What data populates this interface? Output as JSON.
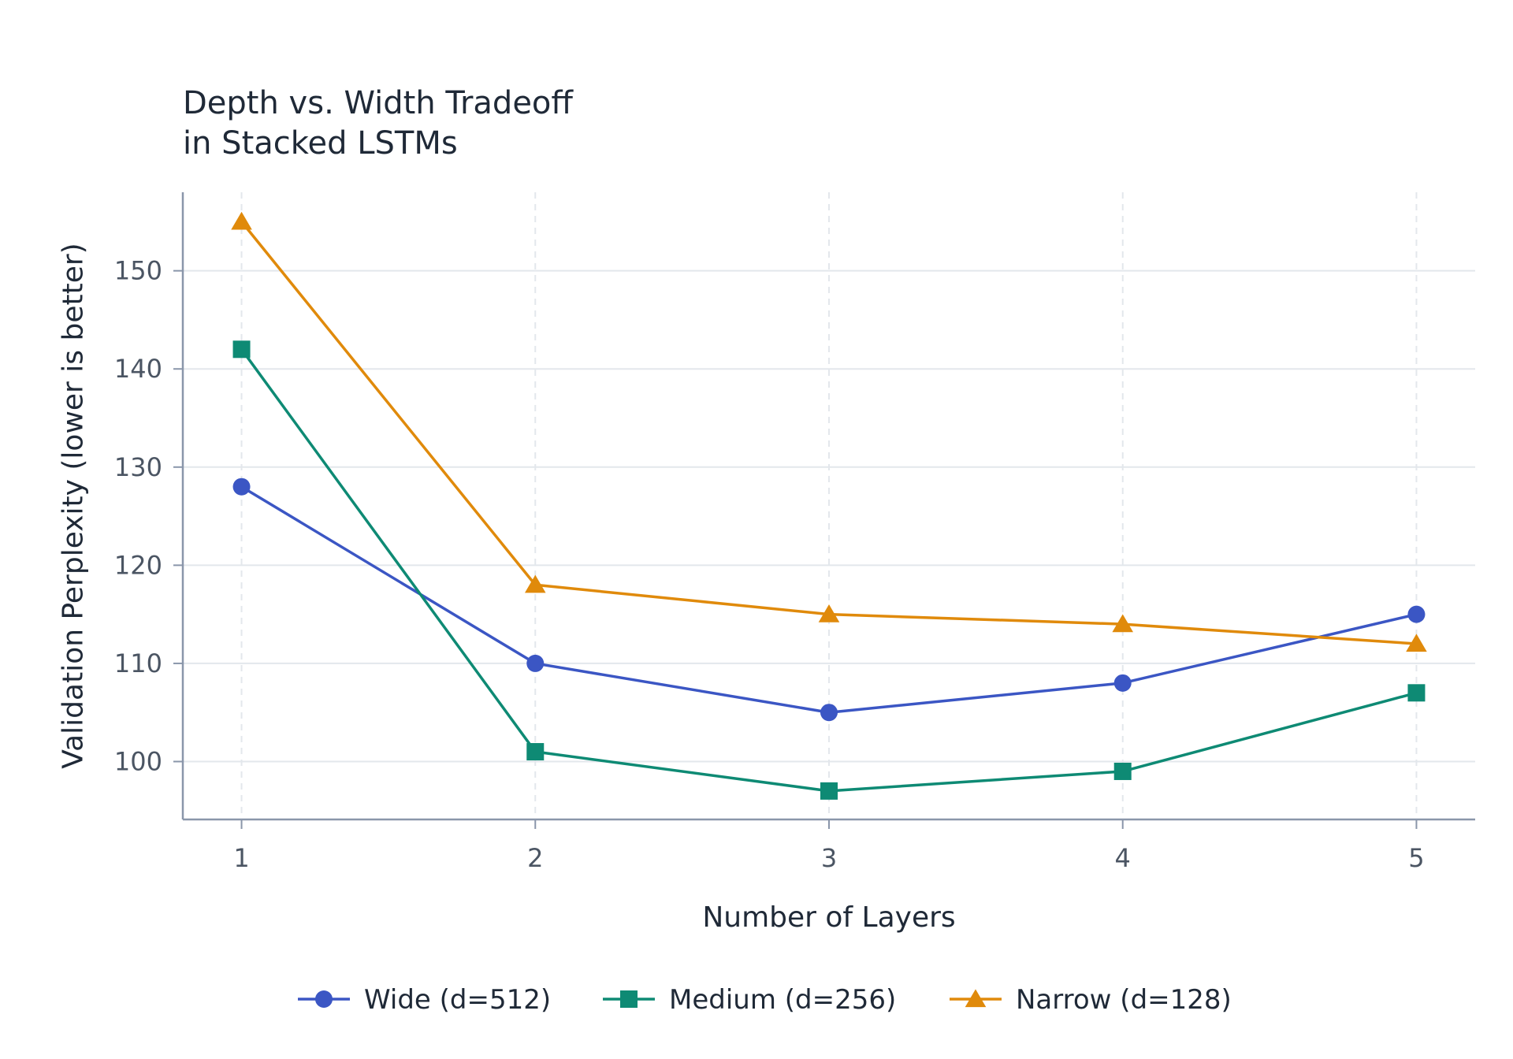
{
  "chart_data": {
    "type": "line",
    "title_lines": [
      "Depth vs. Width Tradeoff",
      "in Stacked LSTMs"
    ],
    "xlabel": "Number of Layers",
    "ylabel": "Validation Perplexity (lower is better)",
    "x": [
      1,
      2,
      3,
      4,
      5
    ],
    "x_tick_labels": [
      "1",
      "2",
      "3",
      "4",
      "5"
    ],
    "y_ticks": [
      100,
      110,
      120,
      130,
      140,
      150
    ],
    "y_tick_labels": [
      "100",
      "110",
      "120",
      "130",
      "140",
      "150"
    ],
    "xlim": [
      0.8,
      5.2
    ],
    "ylim": [
      94.1,
      158
    ],
    "grid": true,
    "legend_position": "bottom-center",
    "series": [
      {
        "name": "Wide (d=512)",
        "color": "#3b56c4",
        "marker": "circle",
        "values": [
          128,
          110,
          105,
          108,
          115
        ]
      },
      {
        "name": "Medium (d=256)",
        "color": "#0e8a74",
        "marker": "square",
        "values": [
          142,
          101,
          97,
          99,
          107
        ]
      },
      {
        "name": "Narrow (d=128)",
        "color": "#e08a0b",
        "marker": "triangle",
        "values": [
          155,
          118,
          115,
          114,
          112
        ]
      }
    ]
  }
}
